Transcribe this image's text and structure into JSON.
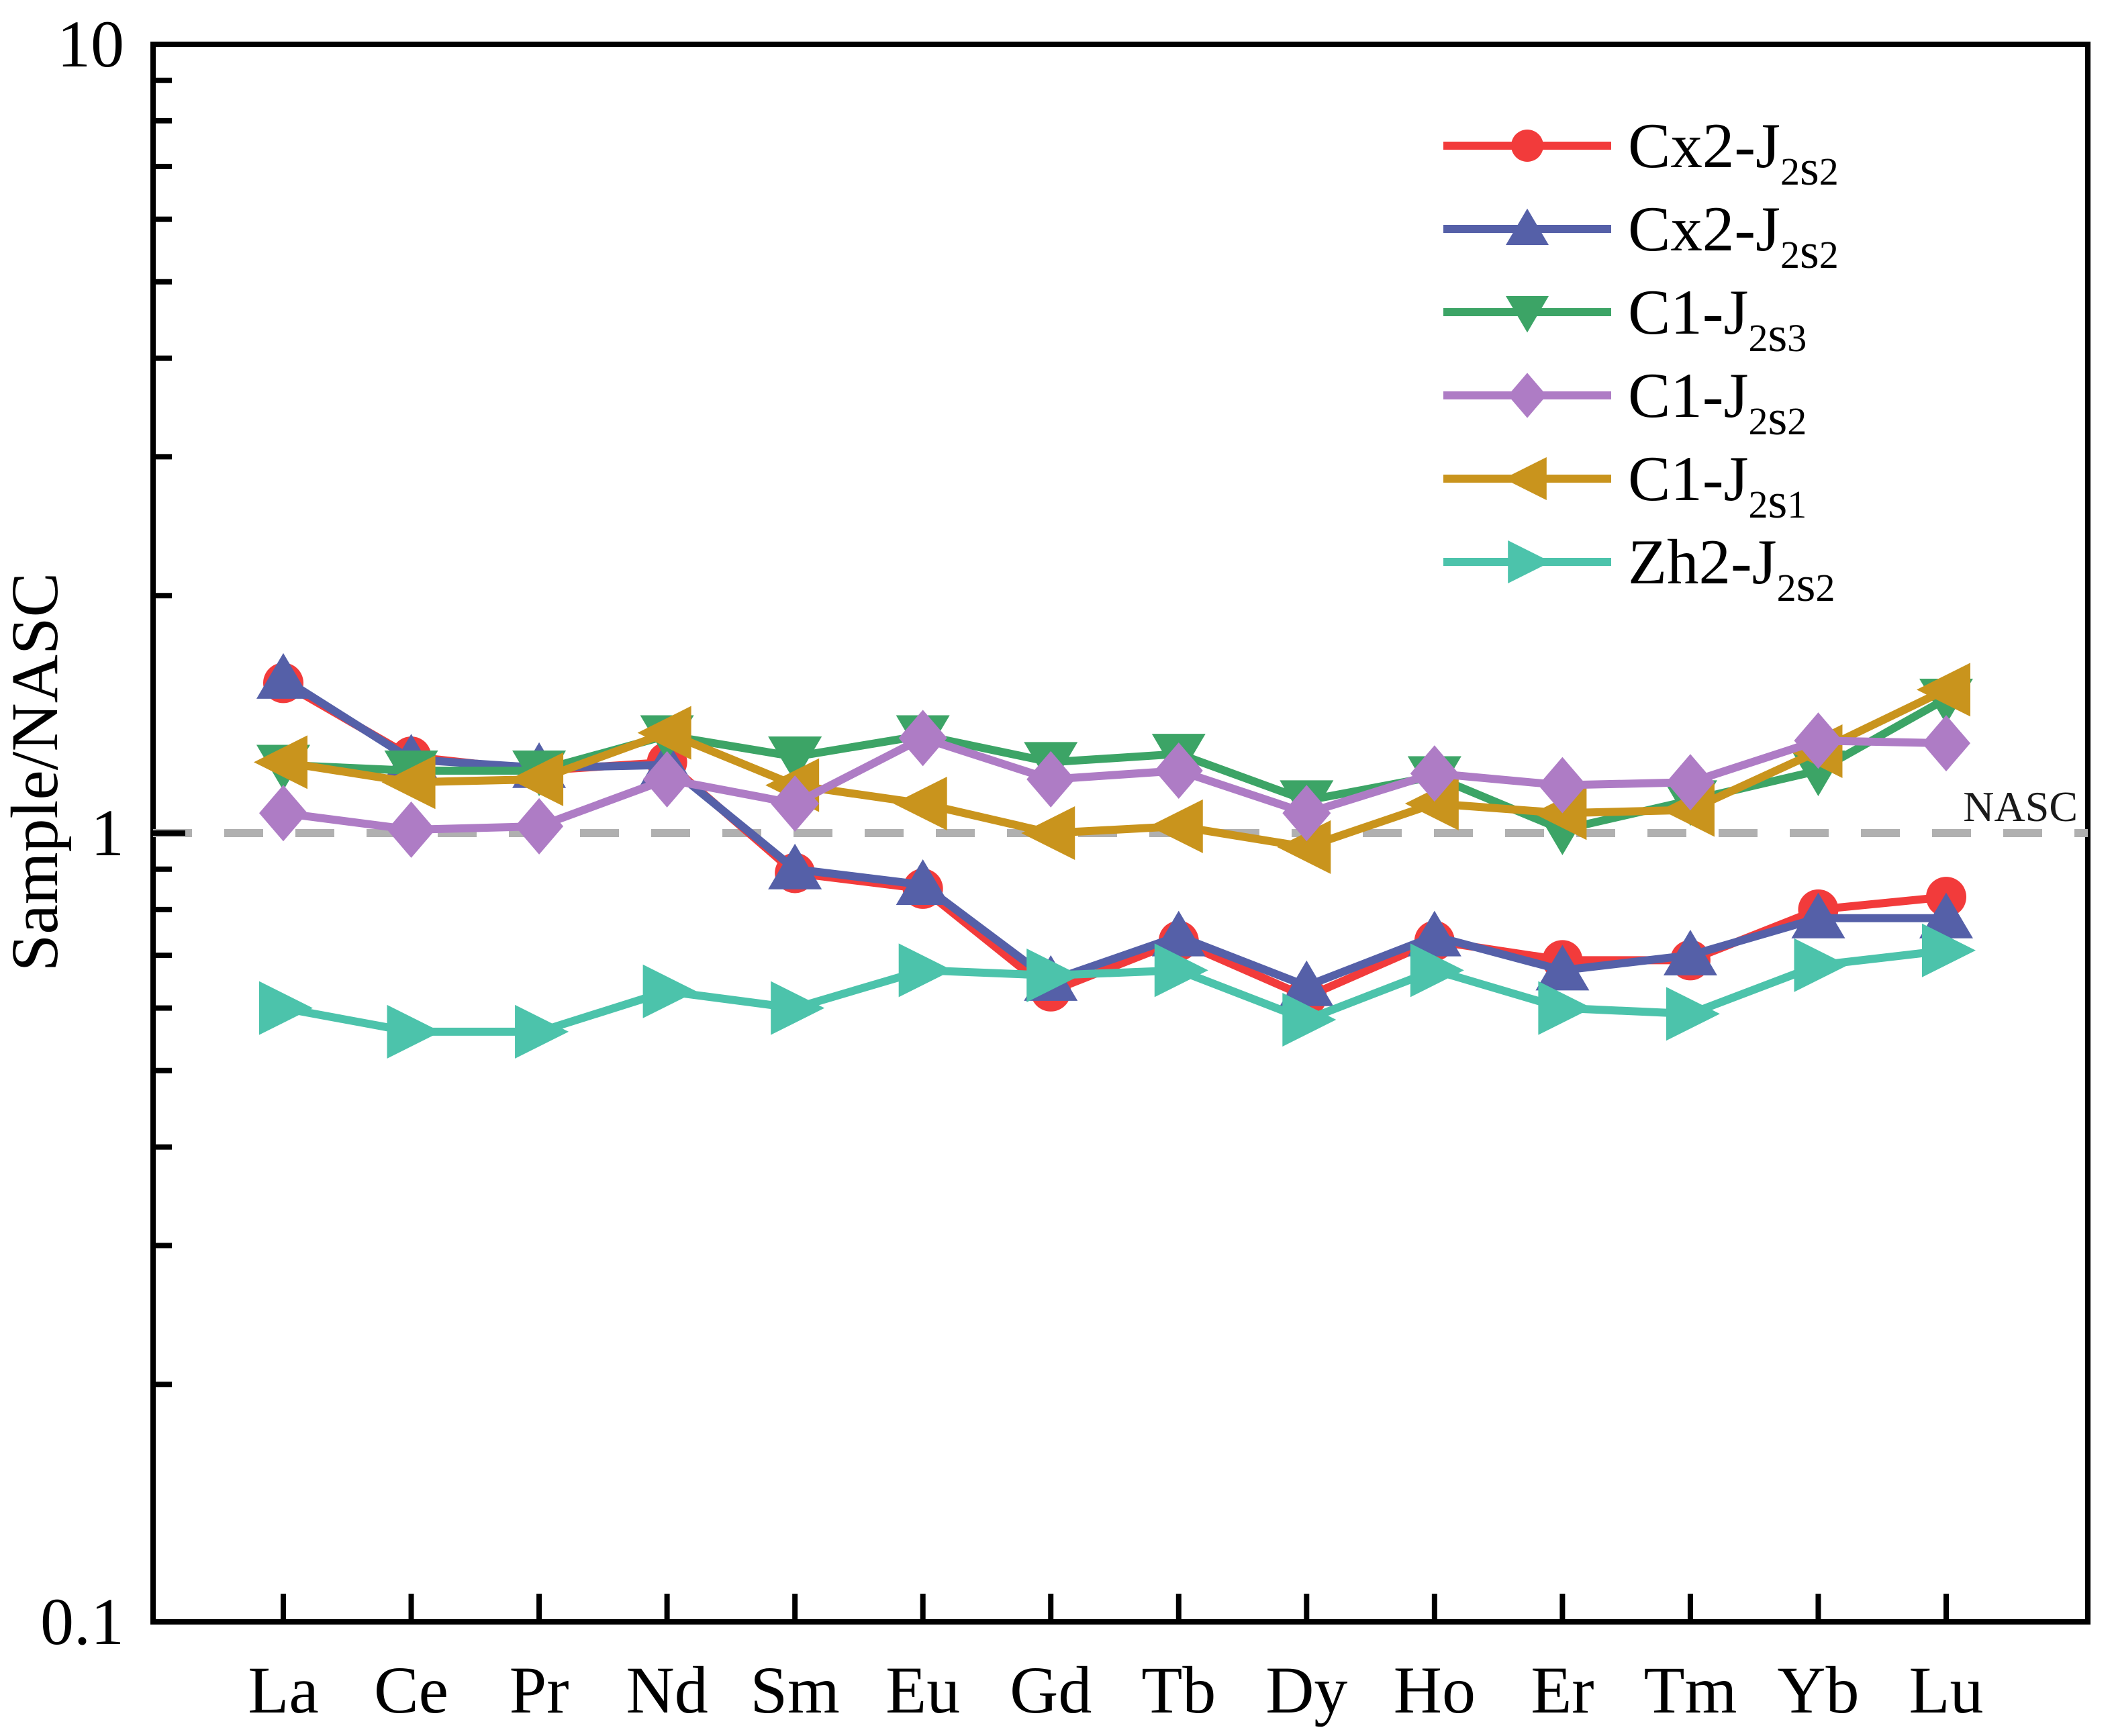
{
  "figure": {
    "background": "#ffffff",
    "axis_color": "#000000"
  },
  "chart_data": {
    "type": "line",
    "title": "",
    "xlabel": "",
    "ylabel": "Sample/NASC",
    "y_scale": "log",
    "ylim": [
      0.1,
      10
    ],
    "grid": false,
    "legend_position": "top-right-inside",
    "x_categories": [
      "La",
      "Ce",
      "Pr",
      "Nd",
      "Sm",
      "Eu",
      "Gd",
      "Tb",
      "Dy",
      "Ho",
      "Er",
      "Tm",
      "Yb",
      "Lu"
    ],
    "y_ticks": [
      {
        "label": "10",
        "value": 10
      },
      {
        "label": "1",
        "value": 1
      },
      {
        "label": "0.1",
        "value": 0.1
      }
    ],
    "reference_line": {
      "label": "NASC",
      "value": 1,
      "style": "dashed",
      "color": "#b0b0b0"
    },
    "draw_order": [
      0,
      1,
      2,
      4,
      3,
      5
    ],
    "series": [
      {
        "name": "Cx2-J2s2",
        "name_parts": [
          {
            "t": "Cx2-J",
            "k": "n"
          },
          {
            "t": "2",
            "k": "d"
          },
          {
            "t": "s",
            "k": "s"
          },
          {
            "t": "2",
            "k": "d"
          }
        ],
        "marker": "circle",
        "marker_icon": "circle-marker-icon",
        "color": "#f23b3b",
        "values": [
          1.55,
          1.25,
          1.2,
          1.23,
          0.89,
          0.85,
          0.63,
          0.73,
          0.62,
          0.73,
          0.69,
          0.69,
          0.8,
          0.83
        ]
      },
      {
        "name": "Cx2-J2s2",
        "name_parts": [
          {
            "t": "Cx2-J",
            "k": "n"
          },
          {
            "t": "2",
            "k": "d"
          },
          {
            "t": "s",
            "k": "s"
          },
          {
            "t": "2",
            "k": "d"
          }
        ],
        "marker": "triangle-up",
        "marker_icon": "triangle-up-marker-icon",
        "color": "#5560a8",
        "values": [
          1.57,
          1.24,
          1.21,
          1.22,
          0.9,
          0.86,
          0.65,
          0.74,
          0.64,
          0.74,
          0.67,
          0.7,
          0.78,
          0.78
        ]
      },
      {
        "name": "C1-J2s3",
        "name_parts": [
          {
            "t": "C1-J",
            "k": "n"
          },
          {
            "t": "2",
            "k": "d"
          },
          {
            "t": "s",
            "k": "s"
          },
          {
            "t": "3",
            "k": "d"
          }
        ],
        "marker": "triangle-down",
        "marker_icon": "triangle-down-marker-icon",
        "color": "#3ca466",
        "values": [
          1.22,
          1.2,
          1.2,
          1.33,
          1.25,
          1.33,
          1.23,
          1.26,
          1.1,
          1.18,
          1.01,
          1.1,
          1.2,
          1.48
        ]
      },
      {
        "name": "C1-J2s2",
        "name_parts": [
          {
            "t": "C1-J",
            "k": "n"
          },
          {
            "t": "2",
            "k": "d"
          },
          {
            "t": "s",
            "k": "s"
          },
          {
            "t": "2",
            "k": "d"
          }
        ],
        "marker": "diamond",
        "marker_icon": "diamond-marker-icon",
        "color": "#ae7cc5",
        "values": [
          1.06,
          1.01,
          1.02,
          1.17,
          1.09,
          1.32,
          1.17,
          1.2,
          1.06,
          1.19,
          1.15,
          1.16,
          1.31,
          1.3
        ]
      },
      {
        "name": "C1-J2s1",
        "name_parts": [
          {
            "t": "C1-J",
            "k": "n"
          },
          {
            "t": "2",
            "k": "d"
          },
          {
            "t": "s",
            "k": "s"
          },
          {
            "t": "1",
            "k": "d"
          }
        ],
        "marker": "triangle-left",
        "marker_icon": "triangle-left-marker-icon",
        "color": "#c9941d",
        "values": [
          1.23,
          1.16,
          1.17,
          1.34,
          1.15,
          1.09,
          1.0,
          1.02,
          0.96,
          1.09,
          1.06,
          1.07,
          1.27,
          1.52
        ]
      },
      {
        "name": "Zh2-J2s2",
        "name_parts": [
          {
            "t": "Zh2-J",
            "k": "n"
          },
          {
            "t": "2",
            "k": "d"
          },
          {
            "t": "s",
            "k": "s"
          },
          {
            "t": "2",
            "k": "d"
          }
        ],
        "marker": "triangle-right",
        "marker_icon": "triangle-right-marker-icon",
        "color": "#4cc3ab",
        "values": [
          0.6,
          0.56,
          0.56,
          0.63,
          0.6,
          0.67,
          0.66,
          0.67,
          0.58,
          0.67,
          0.6,
          0.59,
          0.68,
          0.71
        ]
      }
    ]
  }
}
